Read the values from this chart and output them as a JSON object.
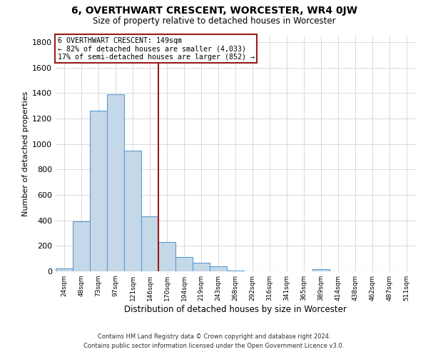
{
  "title": "6, OVERTHWART CRESCENT, WORCESTER, WR4 0JW",
  "subtitle": "Size of property relative to detached houses in Worcester",
  "xlabel": "Distribution of detached houses by size in Worcester",
  "ylabel": "Number of detached properties",
  "bar_labels": [
    "24sqm",
    "48sqm",
    "73sqm",
    "97sqm",
    "121sqm",
    "146sqm",
    "170sqm",
    "194sqm",
    "219sqm",
    "243sqm",
    "268sqm",
    "292sqm",
    "316sqm",
    "341sqm",
    "365sqm",
    "389sqm",
    "414sqm",
    "438sqm",
    "462sqm",
    "487sqm",
    "511sqm"
  ],
  "bar_values": [
    25,
    390,
    1260,
    1390,
    950,
    430,
    230,
    110,
    65,
    40,
    5,
    2,
    0,
    0,
    0,
    15,
    0,
    0,
    0,
    0,
    0
  ],
  "bar_color": "#C5D8E8",
  "bar_edge_color": "#5B9BD5",
  "vline_color": "#9B1B1B",
  "annotation_title": "6 OVERTHWART CRESCENT: 149sqm",
  "annotation_line1": "← 82% of detached houses are smaller (4,033)",
  "annotation_line2": "17% of semi-detached houses are larger (852) →",
  "annotation_box_color": "#9B1B1B",
  "ylim": [
    0,
    1850
  ],
  "yticks": [
    0,
    200,
    400,
    600,
    800,
    1000,
    1200,
    1400,
    1600,
    1800
  ],
  "footnote1": "Contains HM Land Registry data © Crown copyright and database right 2024.",
  "footnote2": "Contains public sector information licensed under the Open Government Licence v3.0."
}
